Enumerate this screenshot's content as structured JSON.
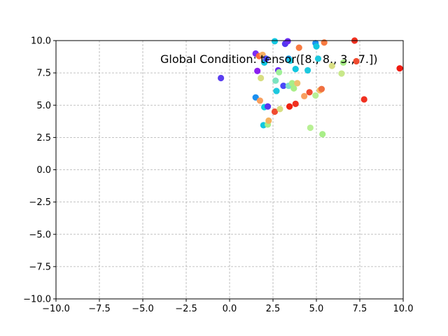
{
  "chart_data": {
    "type": "scatter",
    "title": "",
    "xlabel": "",
    "ylabel": "",
    "xlim": [
      -10,
      10
    ],
    "ylim": [
      -10,
      10
    ],
    "xticks": [
      -10,
      -7.5,
      -5,
      -2.5,
      0,
      2.5,
      5,
      7.5,
      10
    ],
    "yticks": [
      -10,
      -7.5,
      -5,
      -2.5,
      0,
      2.5,
      5,
      7.5,
      10
    ],
    "xtick_labels": [
      "−10.0",
      "−7.5",
      "−5.0",
      "−2.5",
      "0.0",
      "2.5",
      "5.0",
      "7.5",
      "10.0"
    ],
    "ytick_labels": [
      "−10.0",
      "−7.5",
      "−5.0",
      "−2.5",
      "0.0",
      "2.5",
      "5.0",
      "7.5",
      "10.0"
    ],
    "grid": true,
    "annotation": "Global Condition: tensor([8., 8., 3., 7.])",
    "colormap": "rainbow",
    "points": [
      {
        "x": -0.5,
        "y": 7.1,
        "color": "#5b3ff0"
      },
      {
        "x": 1.5,
        "y": 9.0,
        "color": "#7a2ff5"
      },
      {
        "x": 1.6,
        "y": 7.65,
        "color": "#8a1fef"
      },
      {
        "x": 1.7,
        "y": 8.8,
        "color": "#ff6a3a"
      },
      {
        "x": 1.8,
        "y": 7.1,
        "color": "#d8de82"
      },
      {
        "x": 1.9,
        "y": 8.9,
        "color": "#f8b064"
      },
      {
        "x": 2.0,
        "y": 8.3,
        "color": "#12c7e0"
      },
      {
        "x": 2.1,
        "y": 8.6,
        "color": "#4a4bfa"
      },
      {
        "x": 1.5,
        "y": 5.6,
        "color": "#1b90f0"
      },
      {
        "x": 1.75,
        "y": 5.35,
        "color": "#f8a060"
      },
      {
        "x": 2.0,
        "y": 4.85,
        "color": "#11cde0"
      },
      {
        "x": 2.2,
        "y": 4.9,
        "color": "#5a34f0"
      },
      {
        "x": 1.95,
        "y": 3.45,
        "color": "#12c7e0"
      },
      {
        "x": 2.2,
        "y": 3.5,
        "color": "#a8ee88"
      },
      {
        "x": 2.25,
        "y": 3.8,
        "color": "#f4b25e"
      },
      {
        "x": 2.6,
        "y": 4.5,
        "color": "#f04b30"
      },
      {
        "x": 2.65,
        "y": 6.9,
        "color": "#7de3c0"
      },
      {
        "x": 2.7,
        "y": 6.1,
        "color": "#1cc8de"
      },
      {
        "x": 2.8,
        "y": 7.7,
        "color": "#6e2af2"
      },
      {
        "x": 2.85,
        "y": 7.55,
        "color": "#a0f098"
      },
      {
        "x": 2.9,
        "y": 4.7,
        "color": "#d8de82"
      },
      {
        "x": 2.6,
        "y": 9.95,
        "color": "#12c7e0"
      },
      {
        "x": 3.1,
        "y": 6.5,
        "color": "#4a48f8"
      },
      {
        "x": 3.2,
        "y": 9.75,
        "color": "#5236f0"
      },
      {
        "x": 3.35,
        "y": 9.95,
        "color": "#6a2ef2"
      },
      {
        "x": 3.4,
        "y": 8.6,
        "color": "#1b9ef0"
      },
      {
        "x": 3.5,
        "y": 8.45,
        "color": "#1cc8de"
      },
      {
        "x": 3.4,
        "y": 6.5,
        "color": "#7ee0cc"
      },
      {
        "x": 3.45,
        "y": 4.9,
        "color": "#ef2210"
      },
      {
        "x": 3.6,
        "y": 6.7,
        "color": "#a8ee88"
      },
      {
        "x": 3.7,
        "y": 6.3,
        "color": "#a8ee88"
      },
      {
        "x": 3.8,
        "y": 5.1,
        "color": "#f03020"
      },
      {
        "x": 3.8,
        "y": 7.8,
        "color": "#12c7e0"
      },
      {
        "x": 3.9,
        "y": 6.7,
        "color": "#f0c070"
      },
      {
        "x": 4.0,
        "y": 9.45,
        "color": "#f87a40"
      },
      {
        "x": 4.3,
        "y": 5.7,
        "color": "#f8a060"
      },
      {
        "x": 4.5,
        "y": 7.7,
        "color": "#1cc8de"
      },
      {
        "x": 4.6,
        "y": 6.0,
        "color": "#f04b30"
      },
      {
        "x": 4.65,
        "y": 3.25,
        "color": "#b8f094"
      },
      {
        "x": 4.95,
        "y": 9.8,
        "color": "#1b90f0"
      },
      {
        "x": 5.0,
        "y": 9.55,
        "color": "#12c7e0"
      },
      {
        "x": 4.95,
        "y": 5.75,
        "color": "#b8f094"
      },
      {
        "x": 5.1,
        "y": 8.6,
        "color": "#1cc8de"
      },
      {
        "x": 5.2,
        "y": 6.15,
        "color": "#f4c068"
      },
      {
        "x": 5.3,
        "y": 6.25,
        "color": "#f07040"
      },
      {
        "x": 5.35,
        "y": 2.75,
        "color": "#a8ee88"
      },
      {
        "x": 5.45,
        "y": 9.85,
        "color": "#f87a40"
      },
      {
        "x": 5.9,
        "y": 8.05,
        "color": "#d8de82"
      },
      {
        "x": 6.45,
        "y": 7.45,
        "color": "#c8e88a"
      },
      {
        "x": 6.55,
        "y": 8.3,
        "color": "#a8ee88"
      },
      {
        "x": 7.2,
        "y": 10.0,
        "color": "#f03020"
      },
      {
        "x": 7.3,
        "y": 8.4,
        "color": "#f04b30"
      },
      {
        "x": 7.75,
        "y": 5.45,
        "color": "#f03020"
      },
      {
        "x": 9.8,
        "y": 7.85,
        "color": "#ef1a10"
      }
    ]
  }
}
